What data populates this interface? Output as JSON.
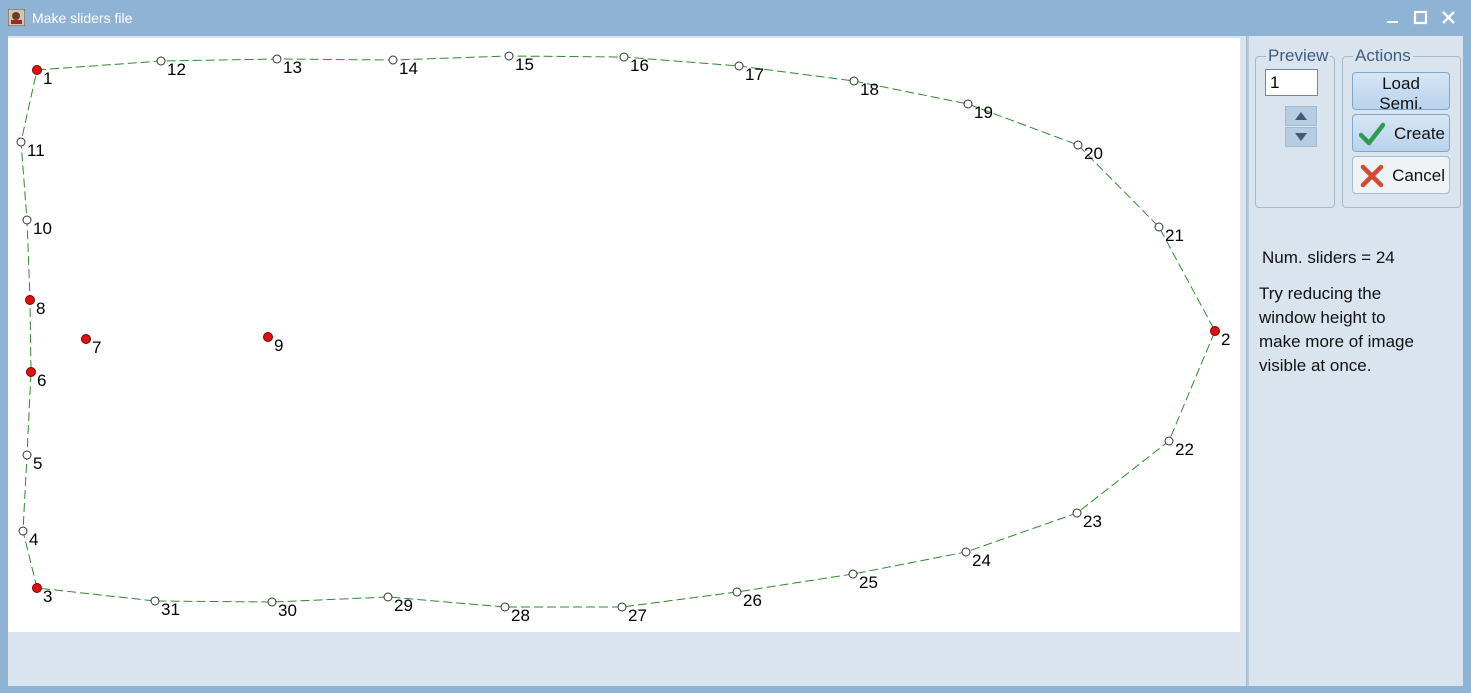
{
  "window": {
    "title": "Make sliders file",
    "icon": "app-icon",
    "controls": [
      "minimize-icon",
      "maximize-icon",
      "close-icon"
    ]
  },
  "preview": {
    "label": "Preview",
    "value": "1"
  },
  "actions": {
    "label": "Actions",
    "load_label": "Load Semi.",
    "create_label": "Create",
    "cancel_label": "Cancel"
  },
  "info": {
    "num_sliders": "Num. sliders = 24",
    "hint_lines": [
      "Try reducing the",
      "window height to",
      "make more of image",
      "visible at once."
    ]
  },
  "colors": {
    "landmark": "#dd1111",
    "semilandmark": "#ffffff",
    "outline": "#2e8b2e"
  }
}
